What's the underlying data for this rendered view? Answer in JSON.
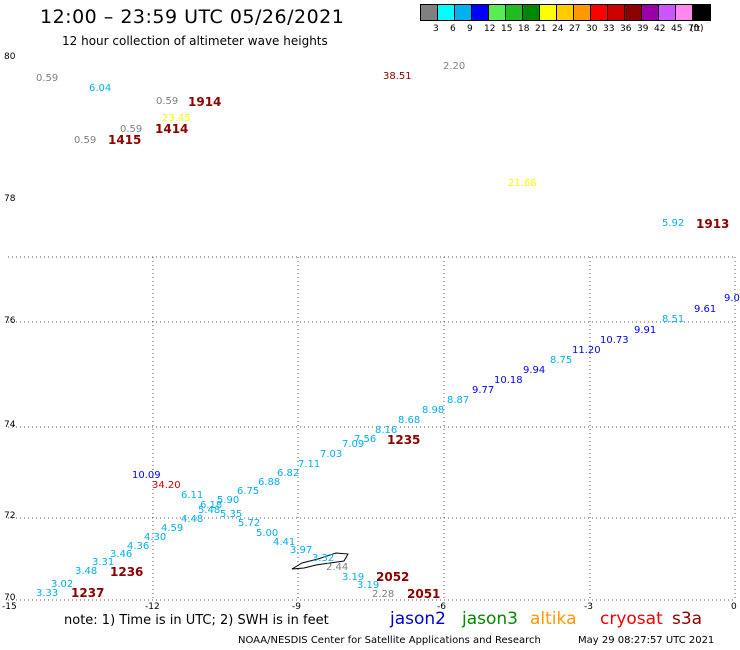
{
  "header": {
    "title": "12:00 – 23:59 UTC 05/26/2021",
    "subtitle": "12 hour collection of altimeter wave heights"
  },
  "legend": {
    "colors": [
      "#808080",
      "#00ffff",
      "#00b0f0",
      "#0000ff",
      "#55ee55",
      "#22bb22",
      "#008800",
      "#ffff00",
      "#ffcc00",
      "#ff9900",
      "#ff0000",
      "#cc0000",
      "#8b0000",
      "#9900aa",
      "#cc55ff",
      "#ff88ee",
      "#000000"
    ],
    "labels": [
      "3",
      "6",
      "9",
      "12",
      "15",
      "18",
      "21",
      "24",
      "27",
      "30",
      "33",
      "36",
      "39",
      "42",
      "45",
      "70",
      "(ft)"
    ]
  },
  "axes": {
    "lat_labels": [
      "80",
      "78",
      "76",
      "74",
      "72",
      "70"
    ],
    "lon_labels": [
      "-15",
      "-12",
      "-9",
      "-6",
      "-3",
      "0"
    ]
  },
  "observations": [
    {
      "text": "0.59",
      "color": "#808080"
    },
    {
      "text": "6.04",
      "color": "#00b0f0"
    },
    {
      "text": "0.59",
      "color": "#808080"
    },
    {
      "text": "1914",
      "color": "#8b0000",
      "big": true
    },
    {
      "text": "23.45",
      "color": "#ffff00"
    },
    {
      "text": "0.59",
      "color": "#808080"
    },
    {
      "text": "1414",
      "color": "#8b0000",
      "big": true
    },
    {
      "text": "0.59",
      "color": "#808080"
    },
    {
      "text": "1415",
      "color": "#8b0000",
      "big": true
    },
    {
      "text": "38.51",
      "color": "#8b0000"
    },
    {
      "text": "2.20",
      "color": "#808080"
    },
    {
      "text": "21.68",
      "color": "#ffff00"
    },
    {
      "text": "5.92",
      "color": "#00b0f0"
    },
    {
      "text": "1913",
      "color": "#8b0000",
      "big": true
    },
    {
      "text": "9.0",
      "color": "#0000ff"
    },
    {
      "text": "9.61",
      "color": "#0000ff"
    },
    {
      "text": "8.51",
      "color": "#00b0f0"
    },
    {
      "text": "9.91",
      "color": "#0000ff"
    },
    {
      "text": "10.73",
      "color": "#0000ff"
    },
    {
      "text": "11.20",
      "color": "#0000ff"
    },
    {
      "text": "8.75",
      "color": "#00b0f0"
    },
    {
      "text": "9.94",
      "color": "#0000ff"
    },
    {
      "text": "10.18",
      "color": "#0000ff"
    },
    {
      "text": "9.77",
      "color": "#0000ff"
    },
    {
      "text": "8.87",
      "color": "#00b0f0"
    },
    {
      "text": "8.98",
      "color": "#00b0f0"
    },
    {
      "text": "8.68",
      "color": "#00b0f0"
    },
    {
      "text": "8.16",
      "color": "#00b0f0"
    },
    {
      "text": "7.56",
      "color": "#00b0f0"
    },
    {
      "text": "1235",
      "color": "#8b0000",
      "big": true
    },
    {
      "text": "7.09",
      "color": "#00b0f0"
    },
    {
      "text": "7.03",
      "color": "#00b0f0"
    },
    {
      "text": "7.11",
      "color": "#00b0f0"
    },
    {
      "text": "6.82",
      "color": "#00b0f0"
    },
    {
      "text": "6.88",
      "color": "#00b0f0"
    },
    {
      "text": "6.75",
      "color": "#00b0f0"
    },
    {
      "text": "10.09",
      "color": "#0000ff"
    },
    {
      "text": "34.20",
      "color": "#cc0000"
    },
    {
      "text": "6.11",
      "color": "#00b0f0"
    },
    {
      "text": "5.90",
      "color": "#00b0f0"
    },
    {
      "text": "6.18",
      "color": "#00b0f0"
    },
    {
      "text": "5.48",
      "color": "#00b0f0"
    },
    {
      "text": "4.48",
      "color": "#00b0f0"
    },
    {
      "text": "5.35",
      "color": "#00b0f0"
    },
    {
      "text": "4.59",
      "color": "#00b0f0"
    },
    {
      "text": "5.72",
      "color": "#00b0f0"
    },
    {
      "text": "5.00",
      "color": "#00b0f0"
    },
    {
      "text": "4.30",
      "color": "#00b0f0"
    },
    {
      "text": "4.36",
      "color": "#00b0f0"
    },
    {
      "text": "4.41",
      "color": "#00b0f0"
    },
    {
      "text": "3.46",
      "color": "#00b0f0"
    },
    {
      "text": "3.97",
      "color": "#00b0f0"
    },
    {
      "text": "3.31",
      "color": "#00b0f0"
    },
    {
      "text": "3.48",
      "color": "#00b0f0"
    },
    {
      "text": "1236",
      "color": "#8b0000",
      "big": true
    },
    {
      "text": "3.32",
      "color": "#00b0f0"
    },
    {
      "text": "2.44",
      "color": "#808080"
    },
    {
      "text": "3.19",
      "color": "#00b0f0"
    },
    {
      "text": "2052",
      "color": "#8b0000",
      "big": true
    },
    {
      "text": "3.02",
      "color": "#00b0f0"
    },
    {
      "text": "3.19",
      "color": "#00b0f0"
    },
    {
      "text": "3.33",
      "color": "#00b0f0"
    },
    {
      "text": "1237",
      "color": "#8b0000",
      "big": true
    },
    {
      "text": "2.28",
      "color": "#808080"
    },
    {
      "text": "2051",
      "color": "#8b0000",
      "big": true
    }
  ],
  "footer": {
    "note": "note:  1) Time is in UTC;  2) SWH is in feet",
    "missions": [
      {
        "name": "jason2",
        "color": "#0000cc"
      },
      {
        "name": "jason3",
        "color": "#008800"
      },
      {
        "name": "altika",
        "color": "#ff9900"
      },
      {
        "name": "cryosat",
        "color": "#ee0000"
      },
      {
        "name": "s3a",
        "color": "#8b0000"
      }
    ],
    "credit": "NOAA/NESDIS Center for Satellite Applications and Research",
    "timestamp": "May 29 08:27:57 UTC 2021"
  }
}
